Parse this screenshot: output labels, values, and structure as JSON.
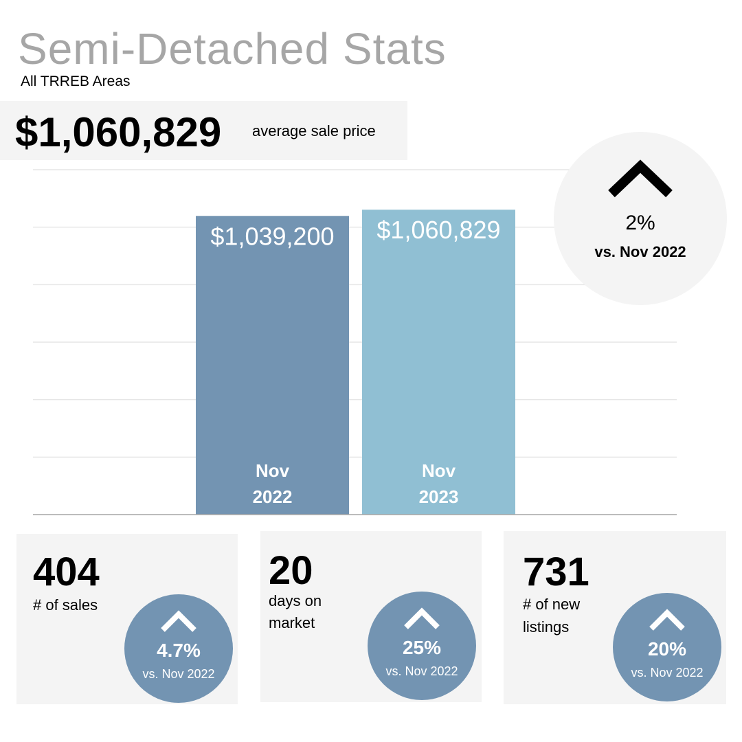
{
  "header": {
    "title": "Semi-Detached Stats",
    "subtitle": "All TRREB Areas",
    "price": "$1,060,829",
    "price_label": "average sale price"
  },
  "change": {
    "icon": "chevron-up-icon",
    "percent": "2%",
    "comparison": "vs. Nov 2022"
  },
  "colors": {
    "bar_2022": "#7394b2",
    "bar_2023": "#90bfd3",
    "badge": "#7394b2",
    "card": "#f4f4f4",
    "title": "#a6a6a6"
  },
  "chart_data": {
    "type": "bar",
    "categories": [
      "Nov 2022",
      "Nov 2023"
    ],
    "category_lines": [
      [
        "Nov",
        "2022"
      ],
      [
        "Nov",
        "2023"
      ]
    ],
    "values": [
      1039200,
      1060829
    ],
    "data_labels": [
      "$1,039,200",
      "$1,060,829"
    ],
    "ylim": [
      0,
      1200000
    ],
    "grid": true
  },
  "stats": [
    {
      "value": "404",
      "label_lines": [
        "# of sales"
      ],
      "percent": "4.7%",
      "comparison": "vs. Nov 2022",
      "icon": "chevron-up-icon"
    },
    {
      "value": "20",
      "label_lines": [
        "days on",
        "market"
      ],
      "percent": "25%",
      "comparison": "vs. Nov 2022",
      "icon": "chevron-up-icon"
    },
    {
      "value": "731",
      "label_lines": [
        "# of new",
        "listings"
      ],
      "percent": "20%",
      "comparison": "vs. Nov 2022",
      "icon": "chevron-up-icon"
    }
  ]
}
